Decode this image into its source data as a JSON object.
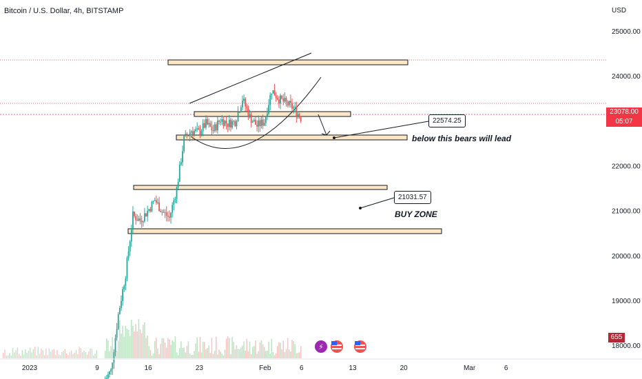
{
  "header": {
    "title": "Bitcoin / U.S. Dollar, 4h, BITSTAMP"
  },
  "price_axis": {
    "currency": "USD",
    "labels": [
      "25000.00",
      "24000.00",
      "23000.00",
      "22000.00",
      "21000.00",
      "20000.00",
      "19000.00",
      "18000.00"
    ],
    "current_price": "23078.00",
    "countdown": "05:07",
    "volume_value": "655"
  },
  "time_axis": {
    "labels": [
      "2023",
      "9",
      "16",
      "23",
      "Feb",
      "6",
      "13",
      "20",
      "Mar",
      "6"
    ]
  },
  "annotations": {
    "box1": "22574.25",
    "text1": "below this bears will lead",
    "box2": "21031.57",
    "text2": "BUY ZONE"
  },
  "colors": {
    "up": "#26a69a",
    "down": "#ef5350",
    "zone_fill": "#fbe7c6",
    "current_price_line": "#f23645",
    "volume_up": "#bfe3c5",
    "volume_down": "#f7c6c4"
  },
  "chart_data": {
    "type": "candlestick",
    "symbol": "Bitcoin / U.S. Dollar",
    "interval": "4h",
    "exchange": "BITSTAMP",
    "ylim": [
      17880,
      25150
    ],
    "current_price": 23078,
    "support_resistance_zones": [
      24220,
      23060,
      22574,
      21500,
      20590
    ],
    "candles_path": [
      {
        "date": "2023-01-10",
        "price": 17200
      },
      {
        "date": "2023-01-11",
        "price": 17450
      },
      {
        "date": "2023-01-12",
        "price": 18700
      },
      {
        "date": "2023-01-13",
        "price": 19600
      },
      {
        "date": "2023-01-14",
        "price": 20900
      },
      {
        "date": "2023-01-15",
        "price": 20800
      },
      {
        "date": "2023-01-16",
        "price": 21000
      },
      {
        "date": "2023-01-17",
        "price": 21250
      },
      {
        "date": "2023-01-18",
        "price": 21000
      },
      {
        "date": "2023-01-19",
        "price": 20850
      },
      {
        "date": "2023-01-20",
        "price": 21500
      },
      {
        "date": "2023-01-21",
        "price": 22600
      },
      {
        "date": "2023-01-22",
        "price": 22800
      },
      {
        "date": "2023-01-23",
        "price": 22750
      },
      {
        "date": "2023-01-24",
        "price": 22950
      },
      {
        "date": "2023-01-25",
        "price": 22800
      },
      {
        "date": "2023-01-26",
        "price": 23050
      },
      {
        "date": "2023-01-27",
        "price": 22950
      },
      {
        "date": "2023-01-28",
        "price": 23000
      },
      {
        "date": "2023-01-29",
        "price": 23500
      },
      {
        "date": "2023-01-30",
        "price": 23100
      },
      {
        "date": "2023-01-31",
        "price": 22900
      },
      {
        "date": "2023-02-01",
        "price": 23000
      },
      {
        "date": "2023-02-02",
        "price": 23700
      },
      {
        "date": "2023-02-03",
        "price": 23500
      },
      {
        "date": "2023-02-04",
        "price": 23400
      },
      {
        "date": "2023-02-05",
        "price": 23300
      },
      {
        "date": "2023-02-06",
        "price": 23078
      }
    ],
    "volume_ylim": [
      0,
      5
    ]
  }
}
